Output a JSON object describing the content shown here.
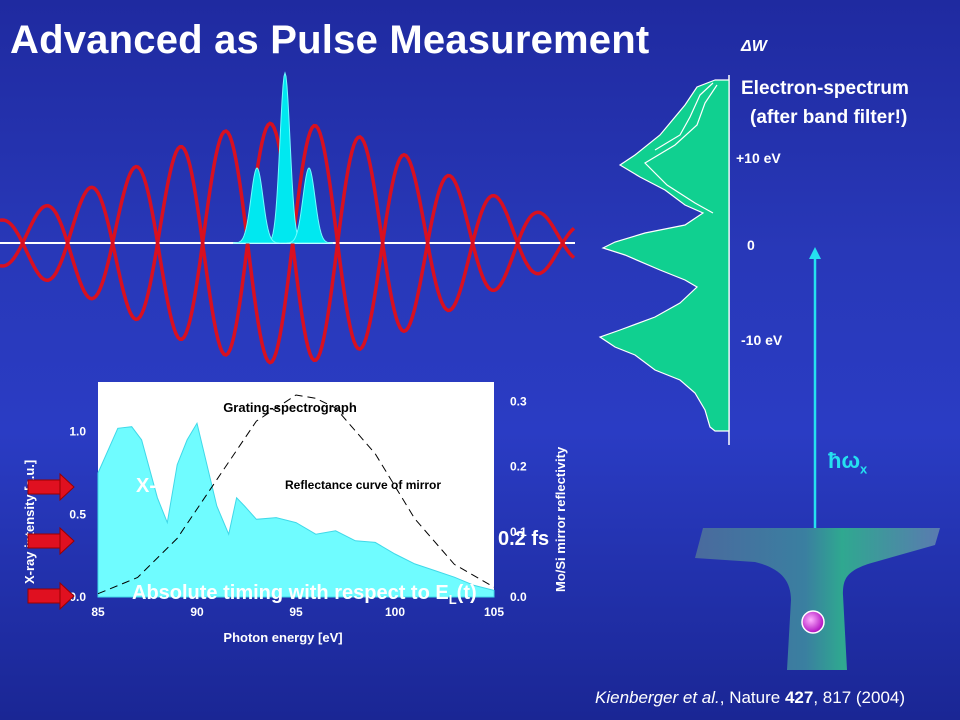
{
  "title": "Advanced as Pulse Measurement",
  "reference": {
    "authors_italic": "Kienberger et al.",
    "journal": "Nature",
    "volume_bold": "427",
    "pages_year": "817 (2004)"
  },
  "electron_spectrum": {
    "axis_label": "ΔW",
    "title_line1": "Electron-spectrum",
    "title_line2": "(after band filter!)",
    "ticks": [
      "+10 eV",
      "0",
      "-10 eV"
    ]
  },
  "photon_label": "ħω",
  "photon_label_sub": "x",
  "overlay_text": {
    "line1_visible": "X-r",
    "line2_visible": "0.2 fs",
    "line3_visible": "Absolute timing with respect to E",
    "line3_sub": "L",
    "line3_tail": "(t)"
  },
  "colors": {
    "background": "#2a3cc4",
    "field_waveform": "#d81020",
    "xray_pulse": "#00e8f0",
    "electron_fill": "#10d090",
    "spectrum_fill": "#6ffcff",
    "arrow": "#e01020"
  },
  "chart_data": {
    "type": "area",
    "title": "Grating-spectrograph",
    "annotation": "Reflectance curve of mirror",
    "xlabel": "Photon energy [eV]",
    "ylabel_left": "X-ray intensity [a.u.]",
    "ylabel_right": "Mo/Si mirror reflectivity",
    "x_ticks": [
      "85",
      "90",
      "95",
      "100",
      "105"
    ],
    "y_left_ticks": [
      "0.0",
      "0.5",
      "1.0"
    ],
    "y_right_ticks": [
      "0.0",
      "0.1",
      "0.2",
      "0.3"
    ],
    "xlim": [
      85,
      105
    ],
    "ylim_left": [
      0,
      1.3
    ],
    "ylim_right": [
      0,
      0.33
    ],
    "series": [
      {
        "axis": "left",
        "x": [
          85,
          86,
          86.7,
          87.2,
          88,
          88.5,
          89,
          89.5,
          90,
          91,
          91.6,
          92,
          92.4,
          93,
          94,
          95,
          96,
          97,
          98,
          99,
          100,
          101,
          102,
          103,
          104,
          105
        ],
        "values": [
          0.75,
          1.02,
          1.03,
          0.95,
          0.6,
          0.45,
          0.8,
          0.95,
          1.05,
          0.55,
          0.38,
          0.6,
          0.55,
          0.47,
          0.48,
          0.45,
          0.38,
          0.4,
          0.34,
          0.33,
          0.26,
          0.2,
          0.16,
          0.12,
          0.07,
          0.04
        ]
      },
      {
        "axis": "right",
        "x": [
          85,
          87,
          89,
          91,
          93,
          95,
          96,
          97,
          99,
          101,
          103,
          105
        ],
        "values": [
          0.005,
          0.03,
          0.09,
          0.18,
          0.27,
          0.31,
          0.305,
          0.29,
          0.22,
          0.12,
          0.05,
          0.015
        ]
      }
    ]
  }
}
